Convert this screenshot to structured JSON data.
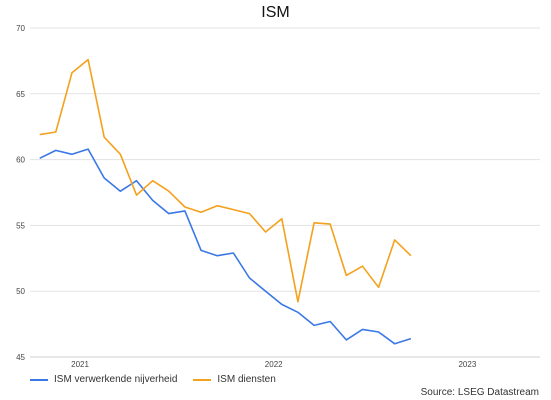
{
  "chart_data": {
    "type": "line",
    "title": "ISM",
    "ylim": [
      45,
      70
    ],
    "yticks": [
      45,
      50,
      55,
      60,
      65,
      70
    ],
    "xlim": [
      -0.6,
      31
    ],
    "x_tick_labels": [
      {
        "label": "2021",
        "x": 2.5
      },
      {
        "label": "2022",
        "x": 14.5
      },
      {
        "label": "2023",
        "x": 26.5
      }
    ],
    "grid": true,
    "legend_position": "bottom-left",
    "series": [
      {
        "name": "ISM verwerkende nijverheid",
        "color": "#3b78e7",
        "values": [
          60.1,
          60.7,
          60.4,
          60.8,
          58.6,
          57.6,
          58.4,
          56.9,
          55.9,
          56.1,
          53.1,
          52.7,
          52.9,
          51.0,
          50.0,
          49.0,
          48.4,
          47.4,
          47.7,
          46.3,
          47.1,
          46.9,
          46.0,
          46.4
        ]
      },
      {
        "name": "ISM diensten",
        "color": "#f4a11d",
        "values": [
          61.9,
          62.1,
          66.6,
          67.6,
          61.7,
          60.4,
          57.3,
          58.4,
          57.6,
          56.4,
          56.0,
          56.5,
          56.2,
          55.9,
          54.5,
          55.5,
          49.2,
          55.2,
          55.1,
          51.2,
          51.9,
          50.3,
          53.9,
          52.7
        ]
      }
    ]
  },
  "source": "Source: LSEG Datastream"
}
